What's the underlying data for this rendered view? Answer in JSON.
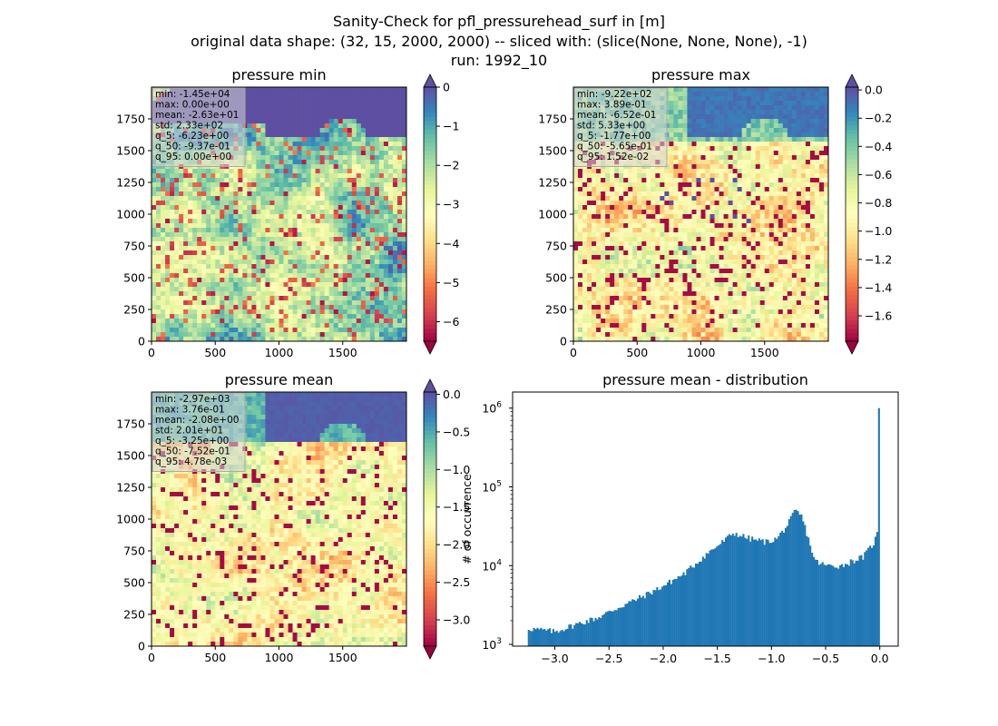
{
  "figure": {
    "title_lines": [
      "Sanity-Check for pfl_pressurehead_surf in [m]",
      "original data shape: (32, 15, 2000, 2000) -- sliced with: (slice(None, None, None), -1)",
      "run: 1992_10"
    ]
  },
  "chart_data": [
    {
      "type": "heatmap",
      "title": "pressure min",
      "xlim": [
        0,
        2000
      ],
      "ylim": [
        0,
        2000
      ],
      "xticks": [
        0,
        500,
        1000,
        1500
      ],
      "yticks": [
        0,
        250,
        500,
        750,
        1000,
        1250,
        1500,
        1750
      ],
      "colormap": "Spectral",
      "colorbar": {
        "range": [
          -6.5,
          0
        ],
        "ticks": [
          0,
          -1,
          -2,
          -3,
          -4,
          -5,
          -6
        ],
        "extend": "both",
        "low_color": "#9e0142",
        "high_color": "#5e4fa2"
      },
      "stats": [
        "min: -1.45e+04",
        "max: 0.00e+00",
        "mean: -2.63e+01",
        "std: 2.33e+02",
        "q_5: -6.23e+00",
        "q_50: -9.37e-01",
        "q_95: 0.00e+00"
      ]
    },
    {
      "type": "heatmap",
      "title": "pressure max",
      "xlim": [
        0,
        2000
      ],
      "ylim": [
        0,
        2000
      ],
      "xticks": [
        0,
        500,
        1000,
        1500
      ],
      "yticks": [
        0,
        250,
        500,
        750,
        1000,
        1250,
        1500,
        1750
      ],
      "colormap": "Spectral",
      "colorbar": {
        "range": [
          -1.78,
          0.02
        ],
        "ticks": [
          "0.0",
          "-0.2",
          "-0.4",
          "-0.6",
          "-0.8",
          "-1.0",
          "-1.2",
          "-1.4",
          "-1.6"
        ],
        "extend": "both",
        "low_color": "#9e0142",
        "high_color": "#5e4fa2"
      },
      "stats": [
        "min: -9.22e+02",
        "max: 3.89e-01",
        "mean: -6.52e-01",
        "std: 5.33e+00",
        "q_5: -1.77e+00",
        "q_50: -5.65e-01",
        "q_95: 1.52e-02"
      ]
    },
    {
      "type": "heatmap",
      "title": "pressure mean",
      "xlim": [
        0,
        2000
      ],
      "ylim": [
        0,
        2000
      ],
      "xticks": [
        0,
        500,
        1000,
        1500
      ],
      "yticks": [
        0,
        250,
        500,
        750,
        1000,
        1250,
        1500,
        1750
      ],
      "colormap": "Spectral",
      "colorbar": {
        "range": [
          -3.35,
          0.03
        ],
        "ticks": [
          "0.0",
          "-0.5",
          "-1.0",
          "-1.5",
          "-2.0",
          "-2.5",
          "-3.0"
        ],
        "extend": "both",
        "low_color": "#9e0142",
        "high_color": "#5e4fa2"
      },
      "stats": [
        "min: -2.97e+03",
        "max: 3.76e-01",
        "mean: -2.08e+00",
        "std: 2.01e+01",
        "q_5: -3.25e+00",
        "q_50: -7.52e-01",
        "q_95: 4.78e-03"
      ]
    },
    {
      "type": "bar",
      "title": "pressure mean - distribution",
      "xlabel": "",
      "ylabel": "# of occurrence",
      "yscale": "log",
      "xlim": [
        -3.39,
        0.17
      ],
      "ylim": [
        950,
        1600000
      ],
      "xticks": [
        "-3.0",
        "-2.5",
        "-2.0",
        "-1.5",
        "-1.0",
        "-0.5",
        "0.0"
      ],
      "yticks": [
        1000,
        10000,
        100000,
        1000000
      ],
      "ytick_labels": [
        "10",
        "10",
        "10",
        "10"
      ],
      "ytick_exponents": [
        "3",
        "4",
        "5",
        "6"
      ],
      "bar_color": "#1f77b4",
      "bin_range": [
        -3.25,
        0.0
      ],
      "points": [
        [
          -3.25,
          1600
        ],
        [
          -3.0,
          1450
        ],
        [
          -2.8,
          1800
        ],
        [
          -2.6,
          2200
        ],
        [
          -2.4,
          3000
        ],
        [
          -2.2,
          4000
        ],
        [
          -2.0,
          5500
        ],
        [
          -1.8,
          8000
        ],
        [
          -1.6,
          14000
        ],
        [
          -1.45,
          20000
        ],
        [
          -1.35,
          26000
        ],
        [
          -1.2,
          22000
        ],
        [
          -1.05,
          20000
        ],
        [
          -0.95,
          22000
        ],
        [
          -0.85,
          33000
        ],
        [
          -0.78,
          50000
        ],
        [
          -0.72,
          42000
        ],
        [
          -0.65,
          20000
        ],
        [
          -0.6,
          11500
        ],
        [
          -0.5,
          10000
        ],
        [
          -0.35,
          10000
        ],
        [
          -0.25,
          11500
        ],
        [
          -0.15,
          13000
        ],
        [
          -0.05,
          20000
        ],
        [
          -0.015,
          28000
        ],
        [
          0.0,
          1000000
        ]
      ]
    }
  ]
}
